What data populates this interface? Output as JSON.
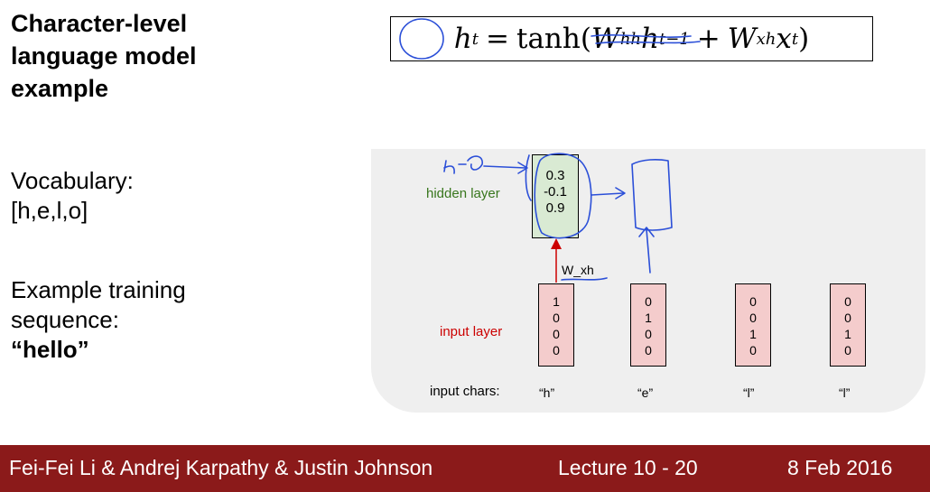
{
  "slide": {
    "title": "Character-level language model example",
    "vocab_label": "Vocabulary:",
    "vocab_value": "[h,e,l,o]",
    "example_label_1": "Example training",
    "example_label_2": "sequence:",
    "example_value": "“hello”"
  },
  "formula": {
    "lhs": "h",
    "lhs_sub": "t",
    "eq": "=",
    "func": "tanh(",
    "w1": "W",
    "w1_sub": "hh",
    "h_prev": "h",
    "h_prev_sub": "t−1",
    "plus": "+",
    "w2": "W",
    "w2_sub": "xh",
    "x": "x",
    "x_sub": "t",
    "close": ")"
  },
  "diagram": {
    "hidden_label": "hidden layer",
    "hidden_values": [
      "0.3",
      "-0.1",
      "0.9"
    ],
    "weight_label": "W_xh",
    "input_label": "input layer",
    "input_chars_label": "input chars:",
    "inputs": [
      {
        "char": "“h”",
        "vector": [
          "1",
          "0",
          "0",
          "0"
        ]
      },
      {
        "char": "“e”",
        "vector": [
          "0",
          "1",
          "0",
          "0"
        ]
      },
      {
        "char": "“l”",
        "vector": [
          "0",
          "0",
          "1",
          "0"
        ]
      },
      {
        "char": "“l”",
        "vector": [
          "0",
          "0",
          "1",
          "0"
        ]
      }
    ]
  },
  "footer": {
    "authors": "Fei-Fei Li & Andrej Karpathy & Justin Johnson",
    "lecture": "Lecture 10 -  20",
    "date": "8 Feb 2016"
  },
  "colors": {
    "footer_bg": "#8b1a1a",
    "hidden_fill": "#d9ead3",
    "input_fill": "#f4cccc",
    "hidden_label": "#38761d",
    "input_label": "#cc0000",
    "annotation_ink": "#2b4fd8"
  }
}
